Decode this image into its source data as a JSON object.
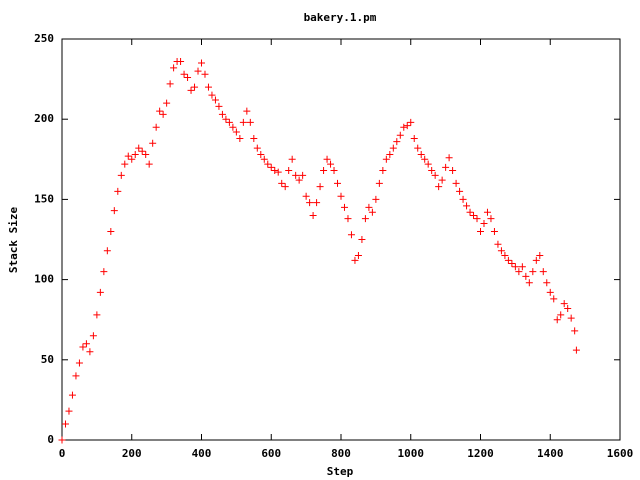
{
  "chart_data": {
    "type": "scatter",
    "title": "bakery.1.pm",
    "x_label": "Step",
    "y_label": "Stack Size",
    "series": [
      {
        "color": "#ff0000",
        "marker": "+",
        "x": [
          0,
          10,
          20,
          30,
          40,
          50,
          60,
          70,
          80,
          90,
          100,
          110,
          120,
          130,
          140,
          150,
          160,
          170,
          180,
          190,
          200,
          210,
          220,
          230,
          240,
          250,
          260,
          270,
          280,
          290,
          300,
          310,
          320,
          330,
          340,
          350,
          360,
          370,
          380,
          390,
          400,
          410,
          420,
          430,
          440,
          450,
          460,
          470,
          480,
          490,
          500,
          510,
          520,
          530,
          540,
          550,
          560,
          570,
          580,
          590,
          600,
          610,
          620,
          630,
          640,
          650,
          660,
          670,
          680,
          690,
          700,
          710,
          720,
          730,
          740,
          750,
          760,
          770,
          780,
          790,
          800,
          810,
          820,
          830,
          840,
          850,
          860,
          870,
          880,
          890,
          900,
          910,
          920,
          930,
          940,
          950,
          960,
          970,
          980,
          990,
          1000,
          1010,
          1020,
          1030,
          1040,
          1050,
          1060,
          1070,
          1080,
          1090,
          1100,
          1110,
          1120,
          1130,
          1140,
          1150,
          1160,
          1170,
          1180,
          1190,
          1200,
          1210,
          1220,
          1230,
          1240,
          1250,
          1260,
          1270,
          1280,
          1290,
          1300,
          1310,
          1320,
          1330,
          1340,
          1350,
          1360,
          1370,
          1380,
          1390,
          1400,
          1410,
          1420,
          1430,
          1440,
          1450,
          1460,
          1470,
          1475
        ],
        "values": [
          0,
          10,
          18,
          28,
          40,
          48,
          58,
          60,
          55,
          65,
          78,
          92,
          105,
          118,
          130,
          143,
          155,
          165,
          172,
          177,
          175,
          178,
          182,
          180,
          178,
          172,
          185,
          195,
          205,
          203,
          210,
          222,
          232,
          236,
          236,
          228,
          226,
          218,
          220,
          230,
          235,
          228,
          220,
          215,
          212,
          208,
          203,
          200,
          198,
          195,
          192,
          188,
          198,
          205,
          198,
          188,
          182,
          178,
          175,
          172,
          170,
          168,
          167,
          160,
          158,
          168,
          175,
          165,
          162,
          165,
          152,
          148,
          140,
          148,
          158,
          168,
          175,
          172,
          168,
          160,
          152,
          145,
          138,
          128,
          112,
          115,
          125,
          138,
          145,
          142,
          150,
          160,
          168,
          175,
          178,
          182,
          186,
          190,
          195,
          196,
          198,
          188,
          182,
          178,
          175,
          172,
          168,
          165,
          158,
          162,
          170,
          176,
          168,
          160,
          155,
          150,
          146,
          142,
          140,
          138,
          130,
          135,
          142,
          138,
          130,
          122,
          118,
          115,
          112,
          110,
          108,
          105,
          108,
          102,
          98,
          105,
          112,
          115,
          105,
          98,
          92,
          88,
          75,
          78,
          85,
          82,
          76,
          68,
          56
        ]
      }
    ],
    "xlim": [
      0,
      1600
    ],
    "xticks": [
      0,
      200,
      400,
      600,
      800,
      1000,
      1200,
      1400,
      1600
    ],
    "ylim": [
      0,
      250
    ],
    "yticks": [
      0,
      50,
      100,
      150,
      200,
      250
    ],
    "grid": false
  }
}
